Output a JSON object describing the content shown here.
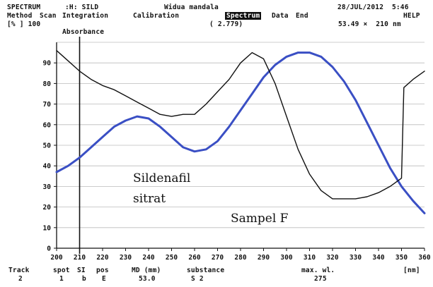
{
  "header": {
    "mode": "SPECTRUM",
    "file": ":H: SILD",
    "operator": "Widua mandala",
    "datetime": "28/JUL/2012  5:46",
    "help": "HELP",
    "menu": [
      "Method",
      "Scan",
      "Integration",
      "Calibration",
      "Spectrum",
      "Data",
      "End"
    ],
    "selected_menu": "Spectrum",
    "cursor_value": "( 2.779)",
    "cursor_readout": "53.49 ×  210 nm",
    "y_unit": "[% ] 100",
    "y_quantity": "Absorbance"
  },
  "annotations": {
    "series1_line1": "Sildenafil",
    "series1_line2": "sitrat",
    "series2": "Sampel F"
  },
  "footer": {
    "headers": [
      "Track",
      "spot",
      "SI",
      "pos",
      "MD (mm)",
      "substance",
      "max. wl.",
      "[nm]"
    ],
    "values": [
      "2",
      "1",
      "b",
      "E",
      "53.0",
      "S 2",
      "275",
      ""
    ]
  },
  "colors": {
    "sildenafil_curve": "#3a4fc4",
    "sample_curve": "#111111",
    "grid": "#bbbbbb"
  },
  "chart_data": {
    "type": "line",
    "xlabel": "[nm]",
    "ylabel": "Absorbance",
    "xlim": [
      200,
      360
    ],
    "ylim": [
      0,
      100
    ],
    "x_ticks": [
      200,
      210,
      220,
      230,
      240,
      250,
      260,
      270,
      280,
      290,
      300,
      310,
      320,
      330,
      340,
      350,
      360
    ],
    "y_ticks": [
      0,
      10,
      20,
      30,
      40,
      50,
      60,
      70,
      80,
      90
    ],
    "cursor_x": 210,
    "series": [
      {
        "name": "Sildenafil sitrat",
        "color": "#3a4fc4",
        "x": [
          200,
          205,
          210,
          215,
          220,
          225,
          230,
          235,
          240,
          245,
          250,
          255,
          260,
          265,
          270,
          275,
          280,
          285,
          290,
          295,
          300,
          305,
          310,
          315,
          320,
          325,
          330,
          335,
          340,
          345,
          350,
          355,
          360
        ],
        "y": [
          37,
          40,
          44,
          49,
          54,
          59,
          62,
          64,
          63,
          59,
          54,
          49,
          47,
          48,
          52,
          59,
          67,
          75,
          83,
          89,
          93,
          95,
          95,
          93,
          88,
          81,
          72,
          61,
          50,
          39,
          30,
          23,
          17
        ]
      },
      {
        "name": "Sampel F",
        "color": "#111111",
        "x": [
          200,
          205,
          210,
          215,
          220,
          225,
          230,
          235,
          240,
          245,
          250,
          255,
          260,
          265,
          270,
          275,
          280,
          285,
          290,
          295,
          300,
          305,
          310,
          315,
          320,
          325,
          330,
          335,
          340,
          345,
          350,
          351,
          355,
          360
        ],
        "y": [
          96,
          91,
          86,
          82,
          79,
          77,
          74,
          71,
          68,
          65,
          64,
          65,
          65,
          70,
          76,
          82,
          90,
          95,
          92,
          80,
          64,
          48,
          36,
          28,
          24,
          24,
          24,
          25,
          27,
          30,
          34,
          78,
          82,
          86
        ]
      }
    ]
  }
}
